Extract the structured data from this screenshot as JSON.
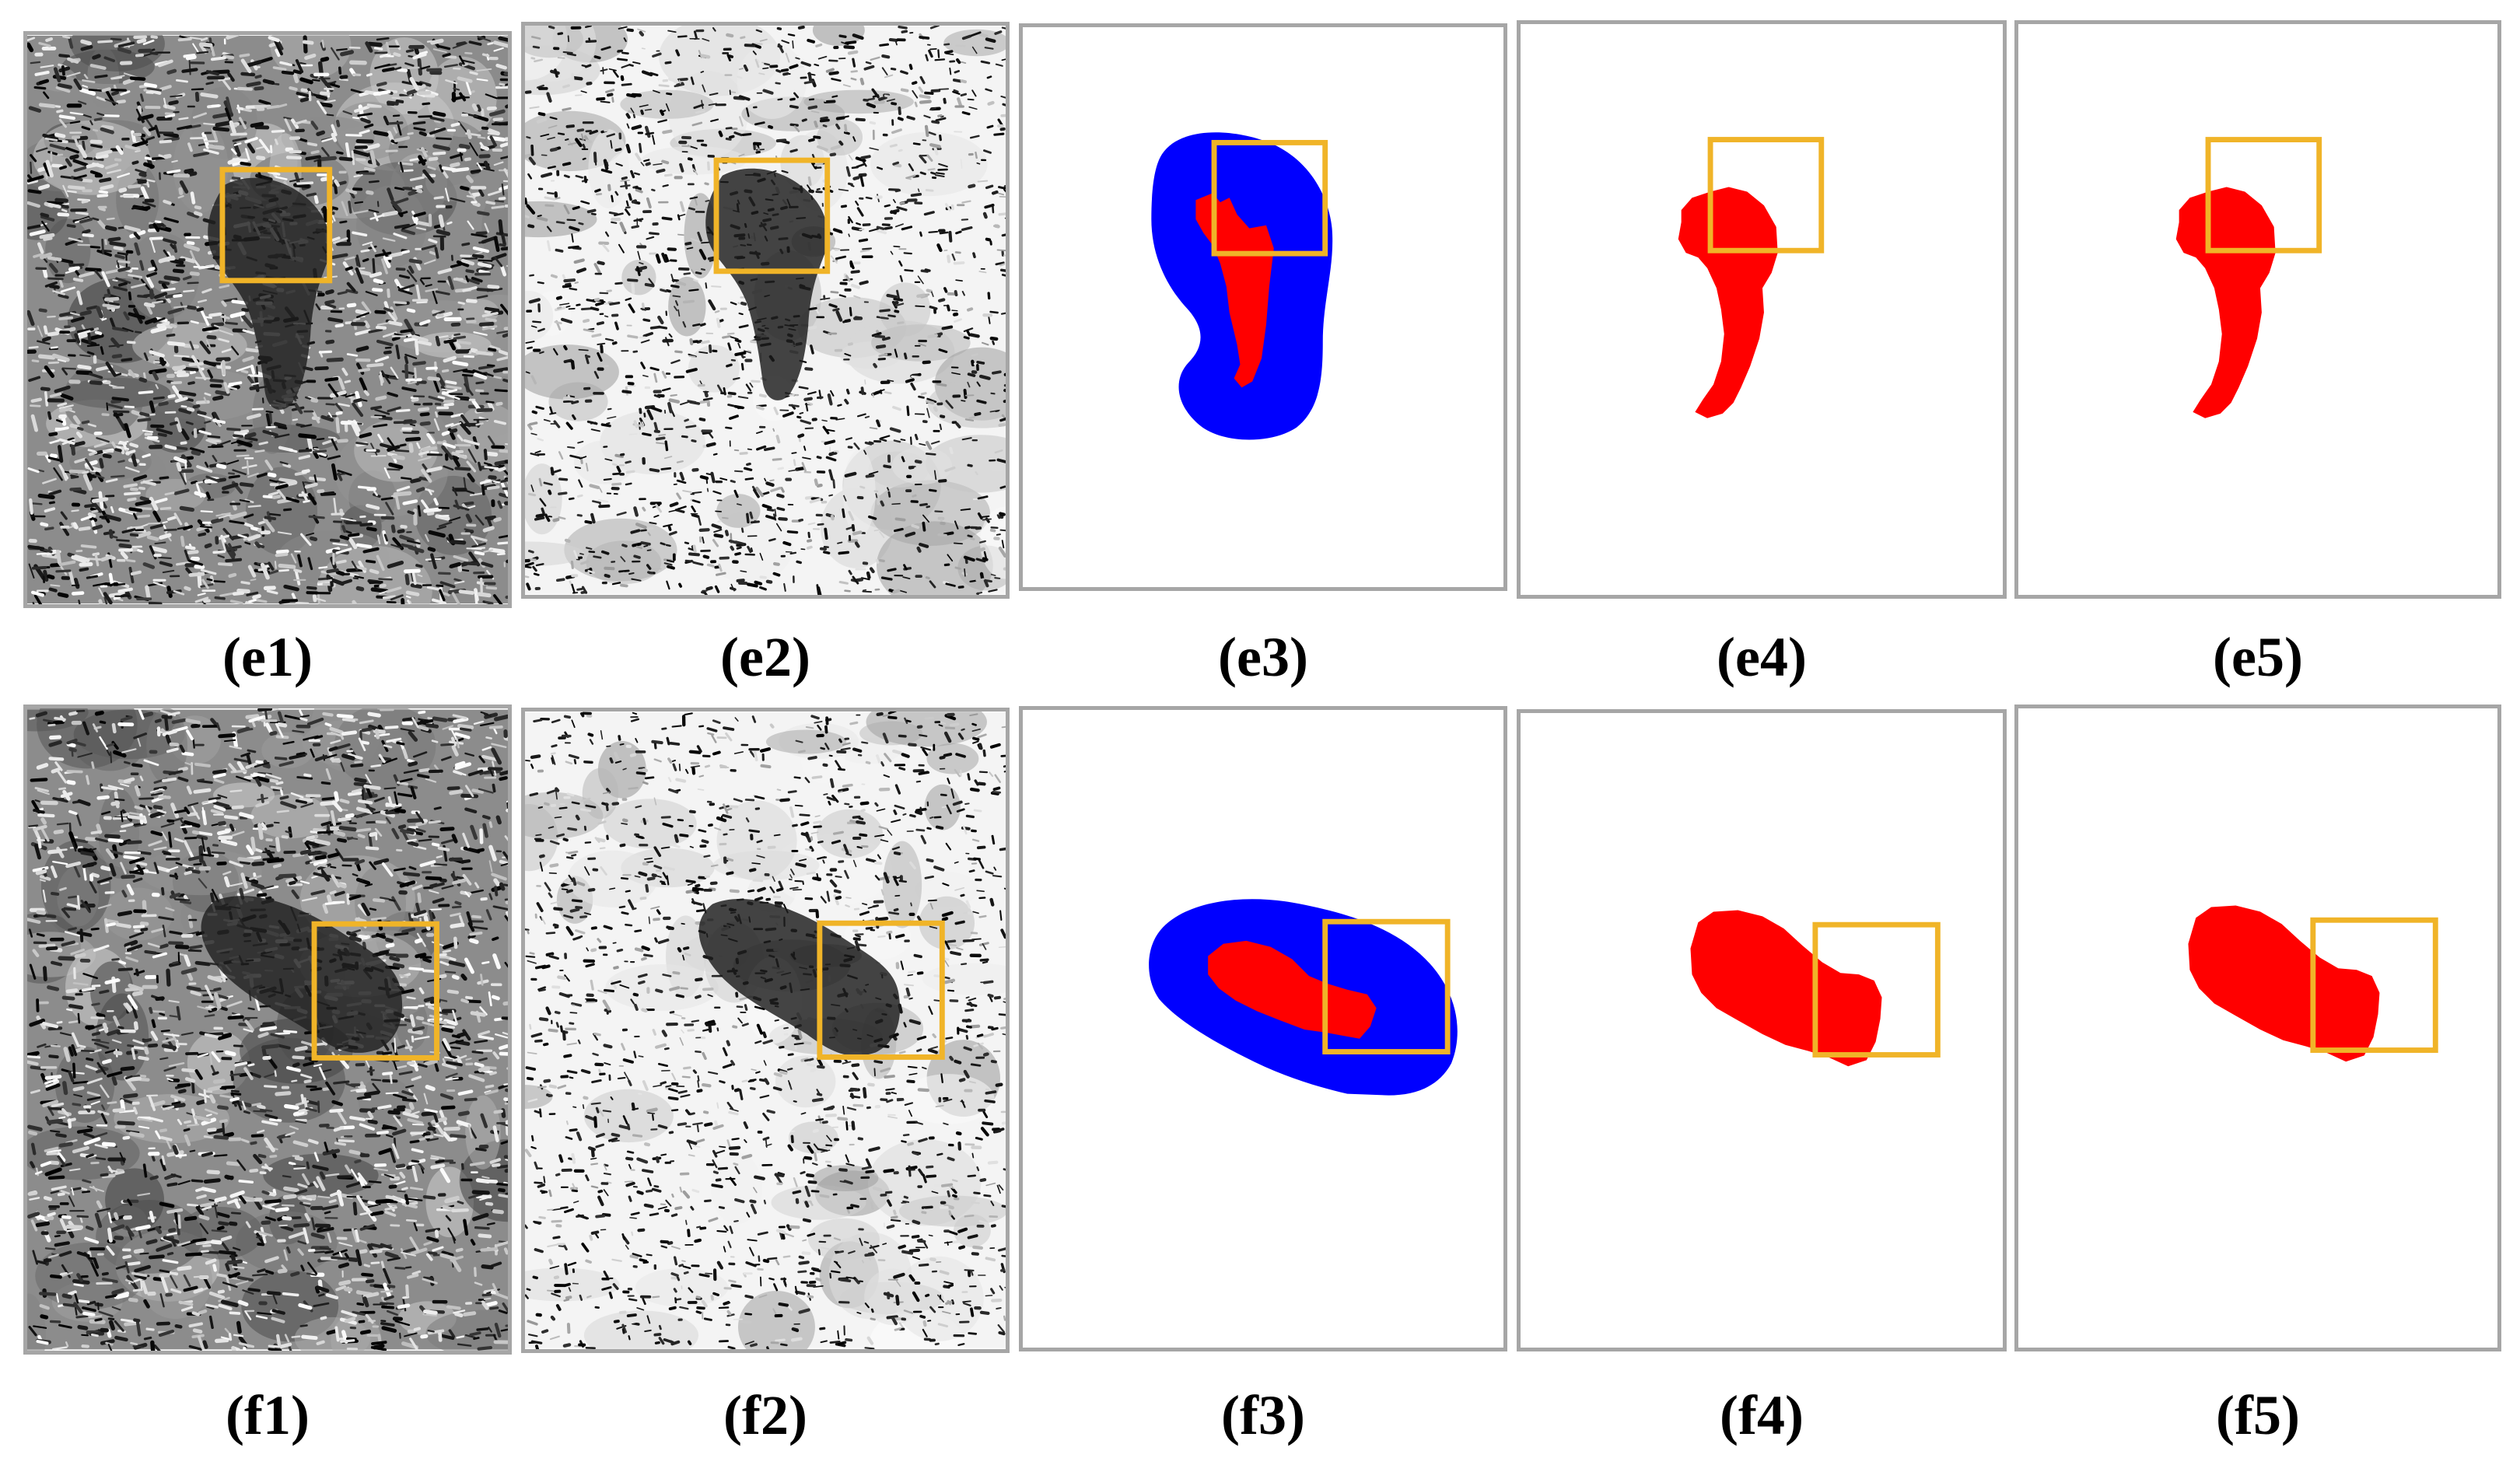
{
  "figure": {
    "colors": {
      "highlight_box": "#f0b428",
      "mask_fill": "#ff0000",
      "outer_region_fill": "#0000ff",
      "panel_border": "#a6a6a6"
    },
    "panels": [
      {
        "id": "e1",
        "caption": "(e1)",
        "kind": "sar-image",
        "contrast": "grey"
      },
      {
        "id": "e2",
        "caption": "(e2)",
        "kind": "sar-image",
        "contrast": "high"
      },
      {
        "id": "e3",
        "caption": "(e3)",
        "kind": "segmentation-with-outer-region"
      },
      {
        "id": "e4",
        "caption": "(e4)",
        "kind": "segmentation"
      },
      {
        "id": "e5",
        "caption": "(e5)",
        "kind": "segmentation"
      },
      {
        "id": "f1",
        "caption": "(f1)",
        "kind": "sar-image",
        "contrast": "grey"
      },
      {
        "id": "f2",
        "caption": "(f2)",
        "kind": "sar-image",
        "contrast": "high"
      },
      {
        "id": "f3",
        "caption": "(f3)",
        "kind": "segmentation-with-outer-region"
      },
      {
        "id": "f4",
        "caption": "(f4)",
        "kind": "segmentation"
      },
      {
        "id": "f5",
        "caption": "(f5)",
        "kind": "segmentation"
      }
    ]
  }
}
